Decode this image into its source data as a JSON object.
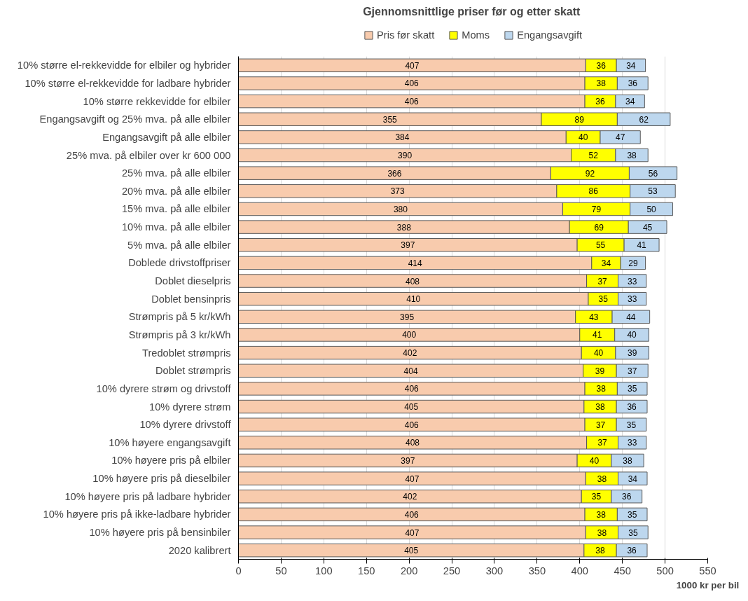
{
  "chart_data": {
    "type": "bar",
    "orientation": "horizontal",
    "stacked": true,
    "title": "Gjennomsnittlige  priser før og etter skatt",
    "xlabel": "1000 kr per bil",
    "categories": [
      "10% større el-rekkevidde for elbiler og hybrider",
      "10% større el-rekkevidde for ladbare hybrider",
      "10% større rekkevidde for elbiler",
      "Engangsavgift og 25% mva. på alle elbiler",
      "Engangsavgift på alle elbiler",
      "25% mva. på elbiler over kr 600 000",
      "25% mva. på alle elbiler",
      "20% mva. på alle elbiler",
      "15% mva. på alle elbiler",
      "10% mva. på alle elbiler",
      "5% mva. på alle elbiler",
      "Doblede drivstoffpriser",
      "Doblet dieselpris",
      "Doblet bensinpris",
      "Strømpris på 5 kr/kWh",
      "Strømpris på 3 kr/kWh",
      "Tredoblet strømpris",
      "Doblet strømpris",
      "10% dyrere strøm og drivstoff",
      "10% dyrere strøm",
      "10% dyrere drivstoff",
      "10% høyere engangsavgift",
      "10% høyere pris på elbiler",
      "10% høyere pris på dieselbiler",
      "10% høyere pris på ladbare hybrider",
      "10% høyere pris på ikke-ladbare hybrider",
      "10% høyere pris på bensinbiler",
      "2020 kalibrert"
    ],
    "series": [
      {
        "name": "Pris før skatt",
        "color": "#f8cbad",
        "values": [
          407,
          406,
          406,
          355,
          384,
          390,
          366,
          373,
          380,
          388,
          397,
          414,
          408,
          410,
          395,
          400,
          402,
          404,
          406,
          405,
          406,
          408,
          397,
          407,
          402,
          406,
          407,
          405
        ]
      },
      {
        "name": "Moms",
        "color": "#ffff00",
        "values": [
          36,
          38,
          36,
          89,
          40,
          52,
          92,
          86,
          79,
          69,
          55,
          34,
          37,
          35,
          43,
          41,
          40,
          39,
          38,
          38,
          37,
          37,
          40,
          38,
          35,
          38,
          38,
          38
        ]
      },
      {
        "name": "Engangsavgift",
        "color": "#bdd7ee",
        "values": [
          34,
          36,
          34,
          62,
          47,
          38,
          56,
          53,
          50,
          45,
          41,
          29,
          33,
          33,
          44,
          40,
          39,
          37,
          35,
          36,
          35,
          33,
          38,
          34,
          36,
          35,
          35,
          36
        ]
      }
    ],
    "xlim": [
      0,
      550
    ],
    "xticks": [
      0,
      50,
      100,
      150,
      200,
      250,
      300,
      350,
      400,
      450,
      500,
      550
    ],
    "grid": "x",
    "legend": "top",
    "data_labels": true
  }
}
